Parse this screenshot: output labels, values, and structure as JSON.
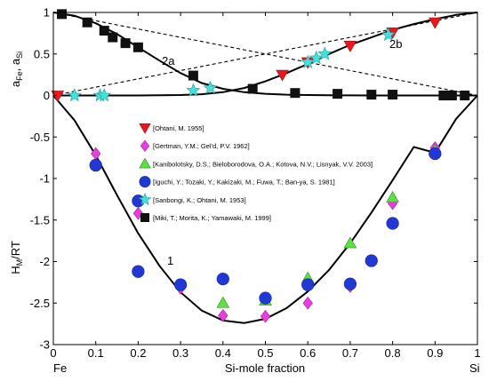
{
  "chart_data": {
    "type": "scatter",
    "xlabel": "Si-mole fraction",
    "x_end_labels": {
      "left": "Fe",
      "right": "Si"
    },
    "xlim": [
      0,
      1
    ],
    "ylim": [
      -3,
      1
    ],
    "x_ticks": [
      0,
      0.1,
      0.2,
      0.3,
      0.4,
      0.5,
      0.6,
      0.7,
      0.8,
      0.9,
      1
    ],
    "x_tick_labels": [
      "0",
      "0.1",
      "0.2",
      "0.3",
      "0.4",
      "0.5",
      "0.6",
      "0.7",
      "0.8",
      "0.9",
      "1"
    ],
    "y_ticks": [
      1,
      0.5,
      0,
      -0.5,
      -1,
      -1.5,
      -2,
      -2.5,
      -3
    ],
    "y_tick_labels": [
      "1",
      "0.5",
      "0",
      "-0.5",
      "-1",
      "-1.5",
      "-2",
      "-2.5",
      "-3"
    ],
    "ylabel_upper": {
      "main": "a",
      "sub1": "Fe",
      "sep": ", a",
      "sub2": "Si"
    },
    "ylabel_lower": {
      "main": "H",
      "sub": "M",
      "rest": "/RT"
    },
    "curve_labels": {
      "activity_fe": "2a",
      "activity_si": "2b",
      "enthalpy": "1"
    },
    "grid": false,
    "legend_position": "center",
    "lines": [
      {
        "id": "raoult-fe",
        "style": "dashed",
        "x": [
          0,
          1
        ],
        "y": [
          1,
          0
        ]
      },
      {
        "id": "raoult-si",
        "style": "dashed",
        "x": [
          0,
          1
        ],
        "y": [
          0,
          1
        ]
      },
      {
        "id": "activity-fe",
        "style": "solid",
        "x": [
          0,
          0.05,
          0.1,
          0.15,
          0.2,
          0.25,
          0.3,
          0.35,
          0.4,
          0.45,
          0.5,
          0.55,
          0.6,
          0.65,
          0.7,
          0.75,
          0.8,
          0.85,
          0.9,
          0.95,
          1
        ],
        "y": [
          1,
          0.96,
          0.87,
          0.74,
          0.58,
          0.42,
          0.27,
          0.15,
          0.08,
          0.04,
          0.02,
          0.01,
          0.005,
          0.002,
          0.001,
          0,
          0,
          0,
          0,
          0,
          0
        ]
      },
      {
        "id": "activity-si",
        "style": "solid",
        "x": [
          0,
          0.1,
          0.2,
          0.3,
          0.35,
          0.4,
          0.45,
          0.5,
          0.55,
          0.6,
          0.65,
          0.7,
          0.75,
          0.8,
          0.85,
          0.9,
          0.95,
          1
        ],
        "y": [
          0,
          0,
          0,
          0.005,
          0.015,
          0.04,
          0.09,
          0.17,
          0.27,
          0.38,
          0.5,
          0.61,
          0.7,
          0.79,
          0.86,
          0.92,
          0.97,
          1
        ]
      },
      {
        "id": "enthalpy",
        "style": "solid",
        "x": [
          0,
          0.05,
          0.1,
          0.15,
          0.2,
          0.25,
          0.3,
          0.35,
          0.4,
          0.45,
          0.5,
          0.55,
          0.6,
          0.65,
          0.7,
          0.75,
          0.8,
          0.85,
          0.9,
          0.95,
          1
        ],
        "y": [
          0,
          -0.3,
          -0.72,
          -1.2,
          -1.66,
          -2.05,
          -2.37,
          -2.59,
          -2.71,
          -2.74,
          -2.69,
          -2.56,
          -2.36,
          -2.1,
          -1.78,
          -1.41,
          -1.02,
          -0.62,
          -0.69,
          -0.28,
          0
        ]
      }
    ],
    "series": [
      {
        "name": "[Ohtani, M. 1955]",
        "marker": "triangle-down",
        "color": "#e8191c",
        "points": [
          [
            0.01,
            0.0
          ],
          [
            0.54,
            0.25
          ],
          [
            0.6,
            0.4
          ],
          [
            0.7,
            0.6
          ],
          [
            0.8,
            0.76
          ],
          [
            0.9,
            0.88
          ]
        ]
      },
      {
        "name": "[Gertman, Y.M.; Gel'd, P.V. 1962]",
        "marker": "diamond",
        "color": "#e83ee0",
        "points": [
          [
            0.1,
            -0.7
          ],
          [
            0.2,
            -1.42
          ],
          [
            0.3,
            -2.32
          ],
          [
            0.4,
            -2.65
          ],
          [
            0.5,
            -2.66
          ],
          [
            0.6,
            -2.5
          ],
          [
            0.7,
            -2.3
          ],
          [
            0.8,
            -1.3
          ],
          [
            0.9,
            -0.63
          ]
        ]
      },
      {
        "name": "[Kanibolotsky, D.S.; Bieloborodova, O.A.; Kotova, N.V.; Lisnyak, V.V.  2003]",
        "marker": "triangle-up",
        "color": "#5de043",
        "points": [
          [
            0.4,
            -2.5
          ],
          [
            0.5,
            -2.47
          ],
          [
            0.6,
            -2.2
          ],
          [
            0.7,
            -1.78
          ],
          [
            0.8,
            -1.23
          ],
          [
            0.9,
            -0.66
          ]
        ]
      },
      {
        "name": "[Iguchi, Y.; Tozaki, Y.; Kakizaki, M.; Fuwa, T.; Ban-ya, S. 1981]",
        "marker": "circle",
        "color": "#2238d6",
        "points": [
          [
            0.1,
            -0.84
          ],
          [
            0.2,
            -1.27
          ],
          [
            0.2,
            -2.12
          ],
          [
            0.3,
            -2.28
          ],
          [
            0.4,
            -2.21
          ],
          [
            0.5,
            -2.44
          ],
          [
            0.6,
            -2.28
          ],
          [
            0.7,
            -2.27
          ],
          [
            0.75,
            -1.99
          ],
          [
            0.8,
            -1.54
          ],
          [
            0.9,
            -0.7
          ]
        ]
      },
      {
        "name": "[Sanbongi, K.; Ohtani, M.  1953]",
        "marker": "star",
        "color": "#45e0dc",
        "points": [
          [
            0.05,
            0.0
          ],
          [
            0.11,
            0.0
          ],
          [
            0.12,
            0.0
          ],
          [
            0.33,
            0.06
          ],
          [
            0.37,
            0.09
          ],
          [
            0.6,
            0.4
          ],
          [
            0.62,
            0.45
          ],
          [
            0.64,
            0.5
          ],
          [
            0.79,
            0.73
          ]
        ]
      },
      {
        "name": "[Miki, T.; Morita, K.; Yamawaki, M.  1999]",
        "marker": "square",
        "color": "#111111",
        "points": [
          [
            0.02,
            0.98
          ],
          [
            0.08,
            0.88
          ],
          [
            0.12,
            0.78
          ],
          [
            0.14,
            0.7
          ],
          [
            0.17,
            0.63
          ],
          [
            0.2,
            0.58
          ],
          [
            0.33,
            0.24
          ],
          [
            0.47,
            0.08
          ],
          [
            0.57,
            0.03
          ],
          [
            0.67,
            0.02
          ],
          [
            0.75,
            0.01
          ],
          [
            0.8,
            0.01
          ],
          [
            0.92,
            0.0
          ],
          [
            0.94,
            0.0
          ],
          [
            0.97,
            0.0
          ]
        ]
      }
    ]
  }
}
